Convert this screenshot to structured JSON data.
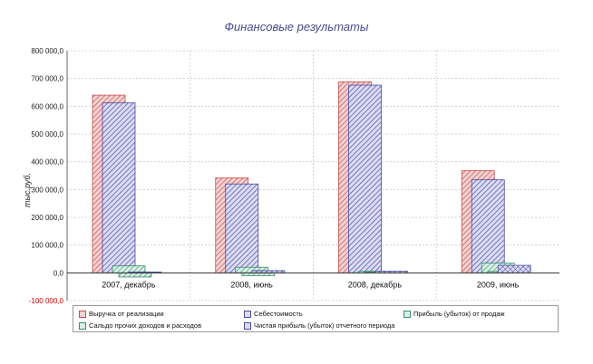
{
  "chart_data": {
    "type": "bar",
    "title": "Финансовые результаты",
    "ylabel": "тыс.руб.",
    "xlabel": "",
    "categories": [
      "2007, декабрь",
      "2008, июнь",
      "2008, декабрь",
      "2009, июнь"
    ],
    "ylim": [
      -100000,
      800000
    ],
    "yticks": [
      "800 000,0",
      "700 000,0",
      "600 000,0",
      "500 000,0",
      "400 000,0",
      "300 000,0",
      "200 000,0",
      "100 000,0",
      "0,0",
      "-100 000,0"
    ],
    "grid": true,
    "legend_position": "bottom",
    "series": [
      {
        "name": "Выручка от реализации",
        "values": [
          640000,
          342000,
          688000,
          368000
        ],
        "color": "#f2b8b8",
        "stroke": "#c0504d"
      },
      {
        "name": "Себестоимость",
        "values": [
          612000,
          320000,
          676000,
          335000
        ],
        "color": "#c8c8ee",
        "stroke": "#4b4b9c"
      },
      {
        "name": "Прибыль (убыток) от продаж",
        "values": [
          25000,
          20000,
          6000,
          35000
        ],
        "color": "#bfe6d8",
        "stroke": "#3a8c6c"
      },
      {
        "name": "Сальдо прочих доходов и расходов",
        "values": [
          -15000,
          -10000,
          2000,
          5000
        ],
        "color": "#bfe6d8",
        "stroke": "#3a8c6c"
      },
      {
        "name": "Чистая прибыль (убыток) отчетного периода",
        "values": [
          0,
          8000,
          6000,
          27000
        ],
        "color": "#c8c8ee",
        "stroke": "#4b4b9c"
      }
    ]
  }
}
